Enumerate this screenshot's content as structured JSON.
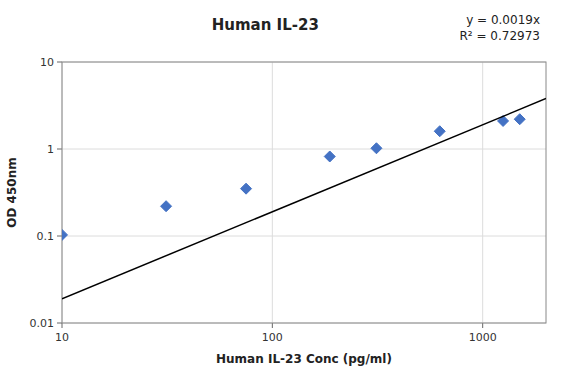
{
  "chart_data": {
    "type": "scatter",
    "title": "Human IL-23",
    "x_label": "Human IL-23 Conc (pg/ml)",
    "y_label": "OD 450nm",
    "annotations": [
      "y = 0.0019x",
      "R² = 0.72973"
    ],
    "log": true,
    "grid": true,
    "xlim": [
      10,
      2000
    ],
    "ylim": [
      0.01,
      10
    ],
    "xticks": [
      10,
      100,
      1000
    ],
    "yticks": [
      0.01,
      0.1,
      1,
      10
    ],
    "series": [
      {
        "type": "scatter",
        "color": "#4472C4",
        "marker": "diamond",
        "x": [
          10,
          31.25,
          75,
          187.5,
          312.5,
          625,
          1250,
          1500
        ],
        "values": [
          0.103,
          0.22,
          0.35,
          0.82,
          1.02,
          1.6,
          2.1,
          2.2
        ]
      },
      {
        "type": "line",
        "color": "#000000",
        "line_style": "solid",
        "x": [
          10,
          2000
        ],
        "values": [
          0.019,
          3.8
        ]
      }
    ]
  }
}
